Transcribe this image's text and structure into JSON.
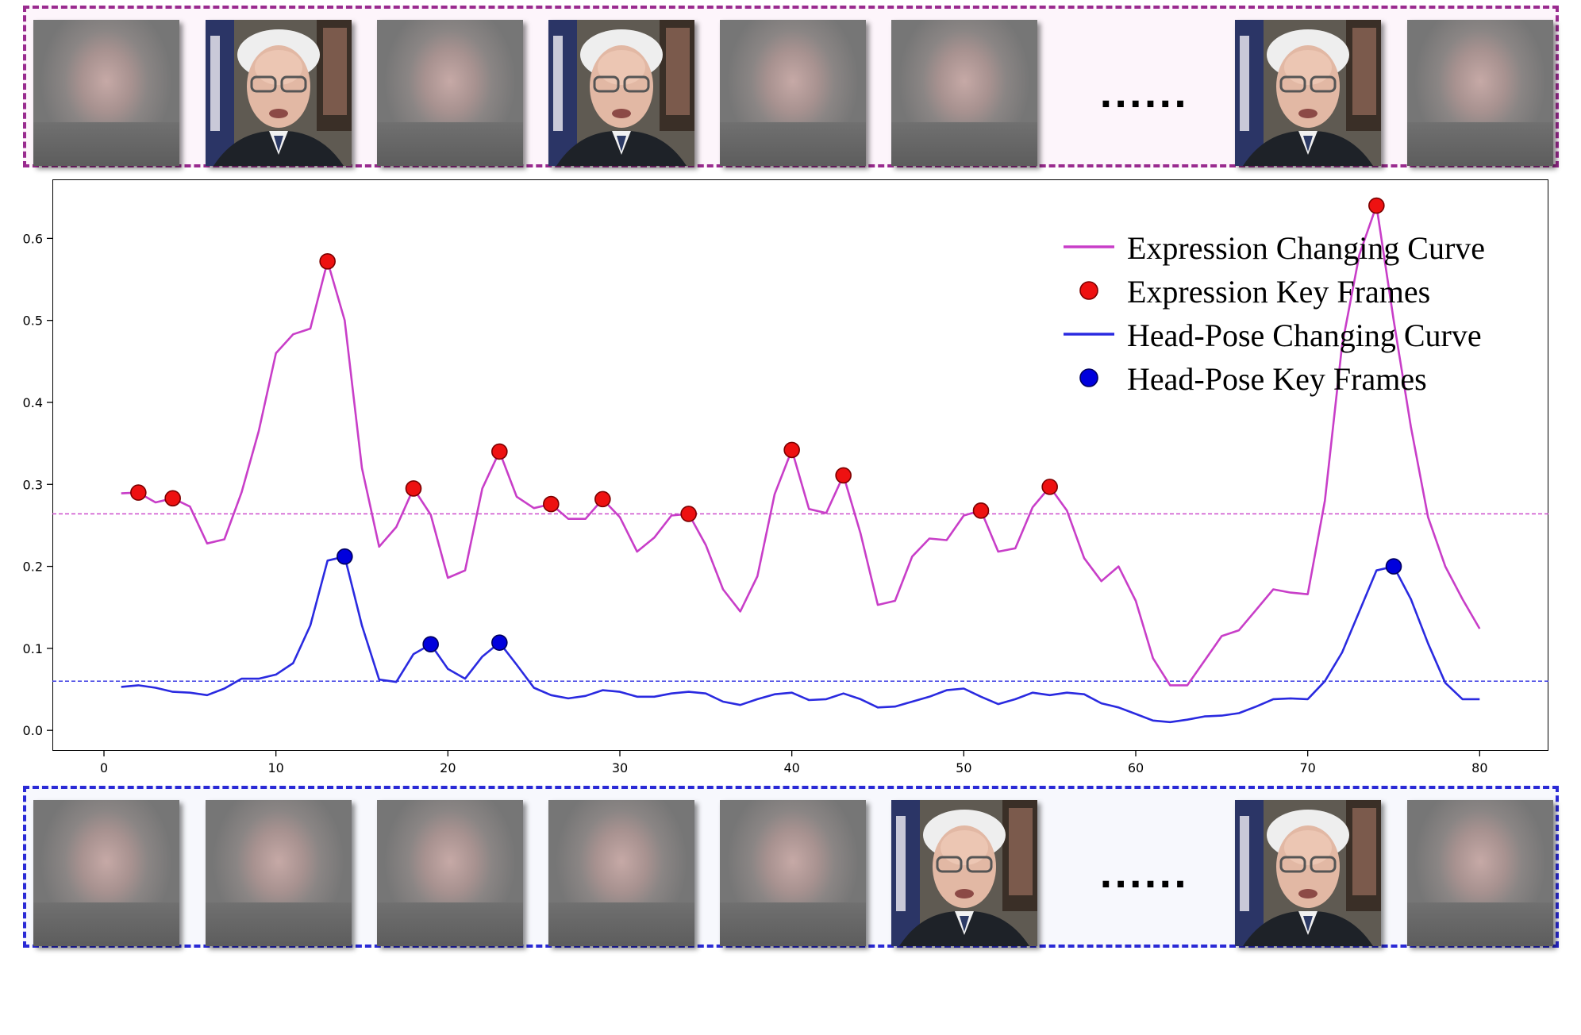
{
  "top_strip": {
    "frames": [
      "blurred",
      "face",
      "blurred",
      "face",
      "blurred",
      "blurred",
      "face",
      "blurred"
    ],
    "ellipsis": "......"
  },
  "bottom_strip": {
    "frames": [
      "blurred",
      "blurred",
      "blurred",
      "blurred",
      "blurred",
      "face",
      "face",
      "blurred"
    ],
    "ellipsis": "......"
  },
  "colors": {
    "expression_curve": "#c83ec8",
    "expression_marker": "#ee1111",
    "headpose_curve": "#2a2ae0",
    "headpose_marker": "#0000dd",
    "top_border": "#9a2b8f",
    "bottom_border": "#2a2ad6"
  },
  "chart_data": {
    "type": "line",
    "xlim": [
      -3,
      84
    ],
    "ylim": [
      -0.025,
      0.672
    ],
    "xticks": [
      0,
      10,
      20,
      30,
      40,
      50,
      60,
      70,
      80
    ],
    "yticks": [
      0.0,
      0.1,
      0.2,
      0.3,
      0.4,
      0.5,
      0.6
    ],
    "grid": false,
    "legend_placement": "top-right",
    "legend": [
      "Expression Changing Curve",
      "Expression Key Frames",
      "Head-Pose Changing Curve",
      "Head-Pose Key Frames"
    ],
    "x": [
      1,
      2,
      3,
      4,
      5,
      6,
      7,
      8,
      9,
      10,
      11,
      12,
      13,
      14,
      15,
      16,
      17,
      18,
      19,
      20,
      21,
      22,
      23,
      24,
      25,
      26,
      27,
      28,
      29,
      30,
      31,
      32,
      33,
      34,
      35,
      36,
      37,
      38,
      39,
      40,
      41,
      42,
      43,
      44,
      45,
      46,
      47,
      48,
      49,
      50,
      51,
      52,
      53,
      54,
      55,
      56,
      57,
      58,
      59,
      60,
      61,
      62,
      63,
      64,
      65,
      66,
      67,
      68,
      69,
      70,
      71,
      72,
      73,
      74,
      75,
      76,
      77,
      78,
      79,
      80
    ],
    "series": [
      {
        "name": "Expression Changing Curve",
        "values": [
          0.289,
          0.29,
          0.278,
          0.283,
          0.273,
          0.228,
          0.233,
          0.29,
          0.365,
          0.46,
          0.483,
          0.49,
          0.572,
          0.5,
          0.32,
          0.224,
          0.248,
          0.295,
          0.263,
          0.186,
          0.195,
          0.295,
          0.34,
          0.285,
          0.271,
          0.276,
          0.258,
          0.258,
          0.282,
          0.26,
          0.218,
          0.235,
          0.262,
          0.264,
          0.226,
          0.172,
          0.145,
          0.188,
          0.288,
          0.342,
          0.27,
          0.265,
          0.311,
          0.24,
          0.153,
          0.158,
          0.212,
          0.234,
          0.232,
          0.262,
          0.268,
          0.218,
          0.222,
          0.272,
          0.297,
          0.268,
          0.21,
          0.182,
          0.2,
          0.158,
          0.088,
          0.055,
          0.055,
          0.085,
          0.115,
          0.122,
          0.147,
          0.172,
          0.168,
          0.166,
          0.28,
          0.47,
          0.58,
          0.64,
          0.5,
          0.37,
          0.26,
          0.2,
          0.16,
          0.124
        ],
        "key_frames": [
          2,
          4,
          13,
          18,
          23,
          26,
          29,
          34,
          40,
          43,
          51,
          55,
          74
        ]
      },
      {
        "name": "Head-Pose Changing Curve",
        "values": [
          0.053,
          0.055,
          0.052,
          0.047,
          0.046,
          0.043,
          0.051,
          0.063,
          0.063,
          0.068,
          0.082,
          0.128,
          0.207,
          0.212,
          0.128,
          0.062,
          0.059,
          0.093,
          0.105,
          0.075,
          0.063,
          0.09,
          0.107,
          0.08,
          0.052,
          0.043,
          0.039,
          0.042,
          0.049,
          0.047,
          0.041,
          0.041,
          0.045,
          0.047,
          0.045,
          0.035,
          0.031,
          0.038,
          0.044,
          0.046,
          0.037,
          0.038,
          0.045,
          0.038,
          0.028,
          0.029,
          0.035,
          0.041,
          0.049,
          0.051,
          0.041,
          0.032,
          0.038,
          0.046,
          0.043,
          0.046,
          0.044,
          0.033,
          0.028,
          0.02,
          0.012,
          0.01,
          0.013,
          0.017,
          0.018,
          0.021,
          0.029,
          0.038,
          0.039,
          0.038,
          0.06,
          0.095,
          0.145,
          0.195,
          0.2,
          0.16,
          0.106,
          0.058,
          0.038,
          0.038
        ],
        "key_frames": [
          14,
          19,
          23,
          75
        ]
      }
    ],
    "thresholds": [
      {
        "series": "Expression Changing Curve",
        "value": 0.264
      },
      {
        "series": "Head-Pose Changing Curve",
        "value": 0.06
      }
    ]
  }
}
